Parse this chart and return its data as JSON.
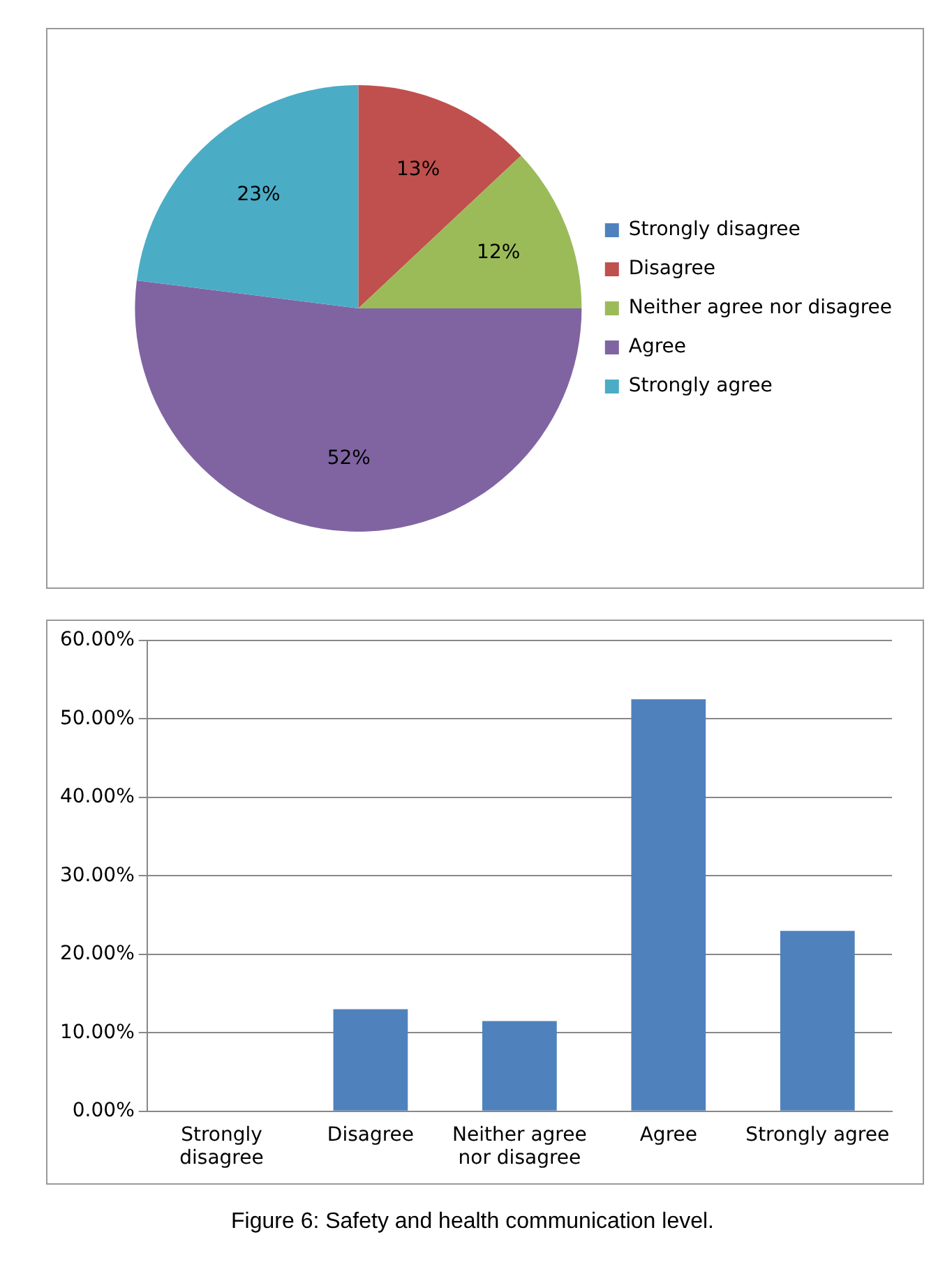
{
  "chart_data": [
    {
      "type": "pie",
      "categories": [
        "Strongly disagree",
        "Disagree",
        "Neither agree nor disagree",
        "Agree",
        "Strongly agree"
      ],
      "values": [
        0,
        13,
        12,
        52,
        23
      ],
      "colors": [
        "#4f81bd",
        "#c0504d",
        "#9bbb59",
        "#8064a2",
        "#4bacc6"
      ],
      "value_labels": [
        null,
        "13%",
        "12%",
        "52%",
        "23%"
      ],
      "legend": "right"
    },
    {
      "type": "bar",
      "categories": [
        "Strongly disagree",
        "Disagree",
        "Neither agree nor disagree",
        "Agree",
        "Strongly agree"
      ],
      "values": [
        0,
        13.0,
        11.5,
        52.5,
        23.0
      ],
      "color": "#4f81bd",
      "ylim": [
        0,
        60
      ],
      "yticks": [
        {
          "value": 0,
          "label": "0.00%"
        },
        {
          "value": 10,
          "label": "10.00%"
        },
        {
          "value": 20,
          "label": "20.00%"
        },
        {
          "value": 30,
          "label": "30.00%"
        },
        {
          "value": 40,
          "label": "40.00%"
        },
        {
          "value": 50,
          "label": "50.00%"
        },
        {
          "value": 60,
          "label": "60.00%"
        }
      ],
      "grid": "y",
      "annotations": [
        "Figure 6: Safety and health communication level."
      ]
    }
  ]
}
